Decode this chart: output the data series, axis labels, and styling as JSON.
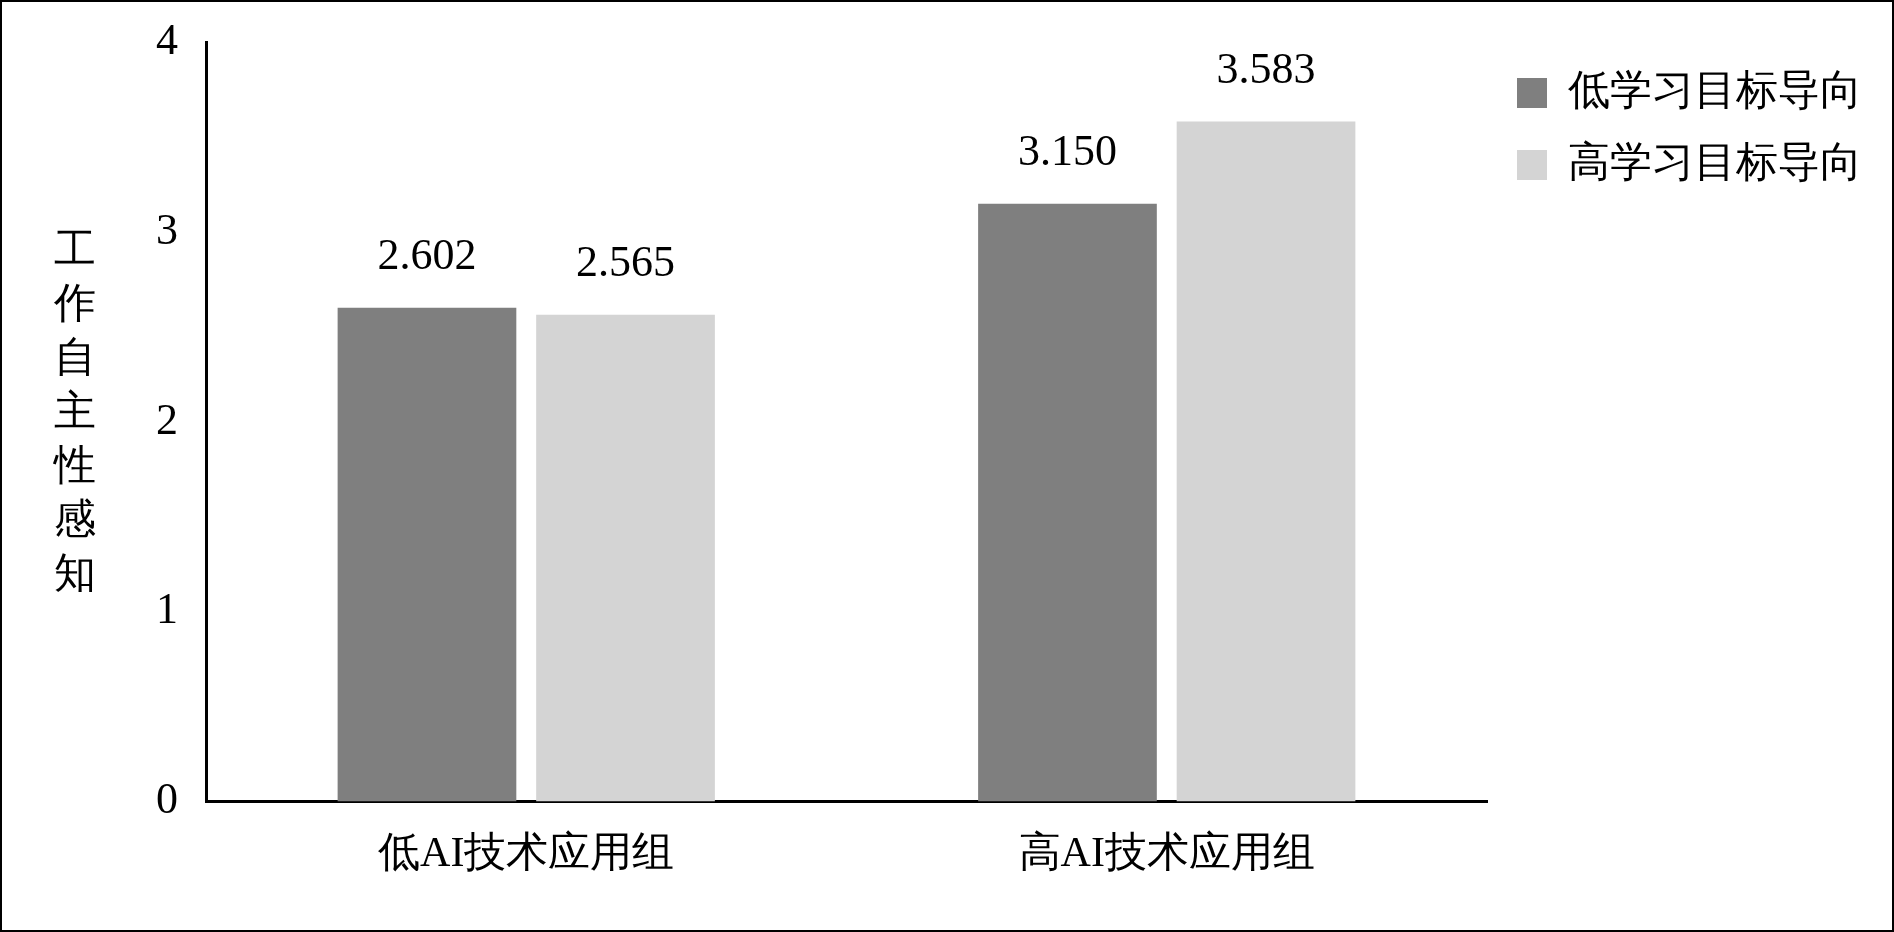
{
  "chart_data": {
    "type": "bar",
    "ylabel": "工作自主性感知",
    "categories": [
      "低AI技术应用组",
      "高AI技术应用组"
    ],
    "series": [
      {
        "name": "低学习目标导向",
        "color": "#7f7f7f",
        "values": [
          2.602,
          3.15
        ],
        "value_labels": [
          "2.602",
          "3.150"
        ]
      },
      {
        "name": "高学习目标导向",
        "color": "#d4d4d4",
        "values": [
          2.565,
          3.583
        ],
        "value_labels": [
          "2.565",
          "3.583"
        ]
      }
    ],
    "ylim": [
      0,
      4
    ],
    "yticks": [
      0,
      1,
      2,
      3,
      4
    ],
    "grid": false,
    "legend": "top right"
  }
}
